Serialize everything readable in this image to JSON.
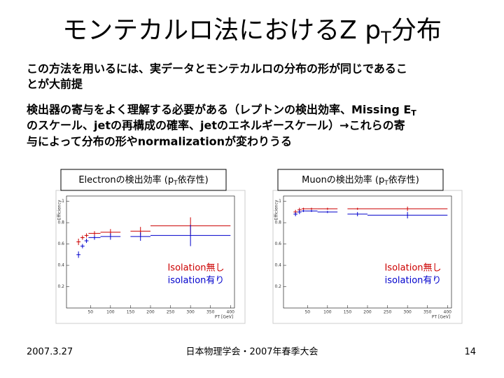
{
  "slide": {
    "title": [
      "モンテカルロ法におけるZ p",
      "T",
      "分布"
    ],
    "para1": [
      "この方法を用いるには、実データとモンテカルロの分布の形が同じであるこ",
      "とが大前提"
    ],
    "para2": [
      "検出器の寄与をよく理解する必要がある（レプトンの検出効率、Missing E",
      "T",
      "のスケール、jetの再構成の確率、jetのエネルギースケール）→これらの寄",
      "与によって分布の形やnormalizationが変わりうる"
    ],
    "date": "2007.3.27",
    "venue": "日本物理学会・2007年春季大会",
    "page": "14"
  },
  "chart_data": [
    {
      "type": "errorbar",
      "title": [
        "Electronの検出効率 (p",
        "T",
        "依存性)"
      ],
      "x_label": "PT [GeV]",
      "y_label": "Efficiency",
      "xlim": [
        -10,
        410
      ],
      "ylim": [
        0,
        1.05
      ],
      "xticks": [
        50,
        100,
        150,
        200,
        250,
        300,
        350,
        400
      ],
      "yticks": [
        0.2,
        0.4,
        0.6,
        0.8,
        1
      ],
      "x": [
        20,
        30,
        40,
        60,
        100,
        175,
        300
      ],
      "xerr": [
        5,
        5,
        5,
        15,
        25,
        25,
        100
      ],
      "series": [
        {
          "name": "Isolation無し",
          "color": "#cc0000",
          "values": [
            0.62,
            0.66,
            0.68,
            0.7,
            0.71,
            0.72,
            0.77
          ],
          "yerr": [
            0.03,
            0.02,
            0.02,
            0.02,
            0.03,
            0.04,
            0.08
          ]
        },
        {
          "name": "isolation有り",
          "color": "#0000cc",
          "values": [
            0.5,
            0.58,
            0.63,
            0.66,
            0.67,
            0.67,
            0.68
          ],
          "yerr": [
            0.03,
            0.02,
            0.02,
            0.02,
            0.03,
            0.04,
            0.1
          ]
        }
      ]
    },
    {
      "type": "errorbar",
      "title": [
        "Muonの検出効率 (p",
        "T",
        "依存性)"
      ],
      "x_label": "PT [GeV]",
      "y_label": "Efficiency",
      "xlim": [
        -10,
        410
      ],
      "ylim": [
        0,
        1.05
      ],
      "xticks": [
        50,
        100,
        150,
        200,
        250,
        300,
        350,
        400
      ],
      "yticks": [
        0.2,
        0.4,
        0.6,
        0.8,
        1
      ],
      "x": [
        20,
        30,
        40,
        60,
        100,
        175,
        300
      ],
      "xerr": [
        5,
        5,
        5,
        15,
        25,
        25,
        100
      ],
      "series": [
        {
          "name": "Isolation無し",
          "color": "#cc0000",
          "values": [
            0.9,
            0.92,
            0.93,
            0.93,
            0.93,
            0.93,
            0.93
          ],
          "yerr": [
            0.02,
            0.02,
            0.01,
            0.01,
            0.01,
            0.01,
            0.02
          ]
        },
        {
          "name": "isolation有り",
          "color": "#0000cc",
          "values": [
            0.88,
            0.9,
            0.91,
            0.91,
            0.9,
            0.88,
            0.87
          ],
          "yerr": [
            0.02,
            0.02,
            0.01,
            0.01,
            0.01,
            0.02,
            0.03
          ]
        }
      ]
    }
  ]
}
